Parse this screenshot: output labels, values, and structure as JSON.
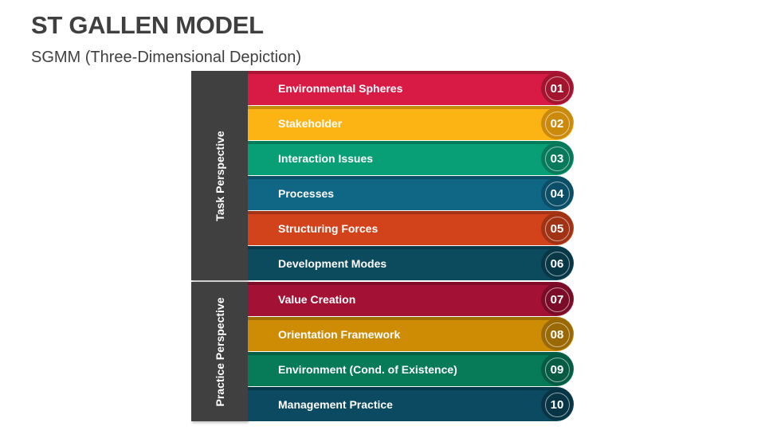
{
  "header": {
    "title": "ST GALLEN MODEL",
    "subtitle": "SGMM (Three-Dimensional Depiction)"
  },
  "perspectives": [
    {
      "label": "Task Perspective",
      "color": "#404040",
      "items": [
        1,
        2,
        3,
        4,
        5,
        6
      ]
    },
    {
      "label": "Practice Perspective",
      "color": "#404040",
      "items": [
        7,
        8,
        9,
        10
      ]
    }
  ],
  "rows": [
    {
      "number": "01",
      "label": "Environmental Spheres",
      "color": "#d81b45",
      "circle": "#a3152f"
    },
    {
      "number": "02",
      "label": "Stakeholder",
      "color": "#fcb415",
      "circle": "#cc8a0c"
    },
    {
      "number": "03",
      "label": "Interaction Issues",
      "color": "#089e76",
      "circle": "#067a5b"
    },
    {
      "number": "04",
      "label": "Processes",
      "color": "#0f6685",
      "circle": "#0b4e67"
    },
    {
      "number": "05",
      "label": "Structuring Forces",
      "color": "#d2431c",
      "circle": "#a23214"
    },
    {
      "number": "06",
      "label": "Development Modes",
      "color": "#0c4a5e",
      "circle": "#083746"
    },
    {
      "number": "07",
      "label": "Value Creation",
      "color": "#a31135",
      "circle": "#7a0c27"
    },
    {
      "number": "08",
      "label": "Orientation Framework",
      "color": "#cd8c04",
      "circle": "#9b6903"
    },
    {
      "number": "09",
      "label": "Environment (Cond. of Existence)",
      "color": "#077a58",
      "circle": "#055c42"
    },
    {
      "number": "10",
      "label": "Management Practice",
      "color": "#0b4a60",
      "circle": "#073545"
    }
  ]
}
